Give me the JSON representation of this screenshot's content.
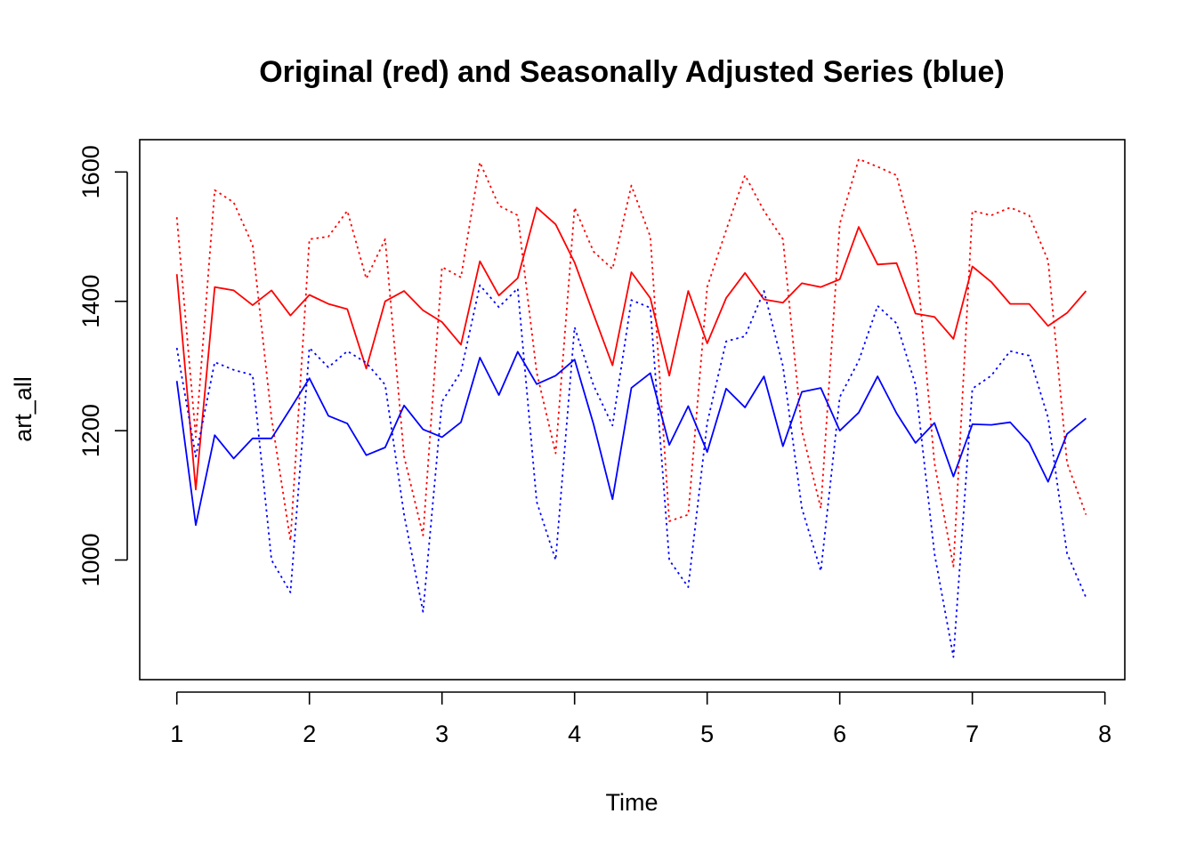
{
  "chart_data": {
    "type": "line",
    "title": "Original (red) and Seasonally Adjusted Series (blue)",
    "xlabel": "Time",
    "ylabel": "art_all",
    "xlim": [
      0.72,
      8.15
    ],
    "ylim": [
      815,
      1650
    ],
    "x_ticks": [
      1,
      2,
      3,
      4,
      5,
      6,
      7,
      8
    ],
    "y_ticks": [
      1000,
      1200,
      1400,
      1600
    ],
    "x_tick_labels": [
      "1",
      "2",
      "3",
      "4",
      "5",
      "6",
      "7",
      "8"
    ],
    "y_tick_labels": [
      "1000",
      "1200",
      "1400",
      "1600"
    ],
    "grid": false,
    "x_start": 1,
    "x_step": 0.142857,
    "series": [
      {
        "color": "#ff0000",
        "style": "dotted",
        "values": [
          1530,
          1190,
          1572,
          1553,
          1487,
          1220,
          1030,
          1496,
          1500,
          1540,
          1435,
          1496,
          1160,
          1038,
          1453,
          1437,
          1615,
          1548,
          1533,
          1290,
          1165,
          1545,
          1477,
          1450,
          1579,
          1500,
          1060,
          1070,
          1422,
          1510,
          1595,
          1540,
          1496,
          1200,
          1080,
          1520,
          1620,
          1608,
          1595,
          1480,
          1150,
          990,
          1540,
          1533,
          1545,
          1533,
          1463,
          1150,
          1070
        ]
      },
      {
        "color": "#ff0000",
        "style": "solid",
        "values": [
          1442,
          1109,
          1422,
          1417,
          1394,
          1417,
          1378,
          1410,
          1396,
          1388,
          1296,
          1400,
          1416,
          1386,
          1368,
          1333,
          1462,
          1409,
          1436,
          1545,
          1519,
          1460,
          1380,
          1301,
          1445,
          1405,
          1285,
          1416,
          1335,
          1405,
          1444,
          1403,
          1398,
          1428,
          1422,
          1434,
          1515,
          1457,
          1459,
          1381,
          1376,
          1342,
          1454,
          1430,
          1396,
          1396,
          1362,
          1382,
          1416
        ]
      },
      {
        "color": "#0000ff",
        "style": "dotted",
        "values": [
          1328,
          1160,
          1306,
          1294,
          1286,
          1000,
          950,
          1328,
          1298,
          1323,
          1305,
          1271,
          1070,
          920,
          1245,
          1291,
          1425,
          1391,
          1420,
          1090,
          1000,
          1360,
          1270,
          1208,
          1402,
          1390,
          1000,
          958,
          1212,
          1338,
          1346,
          1416,
          1300,
          1080,
          983,
          1252,
          1308,
          1393,
          1366,
          1271,
          1010,
          850,
          1265,
          1285,
          1323,
          1316,
          1220,
          1010,
          942
        ]
      },
      {
        "color": "#0000ff",
        "style": "solid",
        "values": [
          1277,
          1054,
          1193,
          1157,
          1188,
          1188,
          1234,
          1281,
          1223,
          1211,
          1162,
          1174,
          1239,
          1202,
          1190,
          1213,
          1313,
          1255,
          1322,
          1272,
          1285,
          1310,
          1210,
          1094,
          1266,
          1289,
          1178,
          1238,
          1167,
          1265,
          1236,
          1284,
          1176,
          1260,
          1266,
          1200,
          1228,
          1284,
          1227,
          1181,
          1212,
          1129,
          1210,
          1209,
          1213,
          1181,
          1121,
          1195,
          1219
        ]
      }
    ]
  }
}
